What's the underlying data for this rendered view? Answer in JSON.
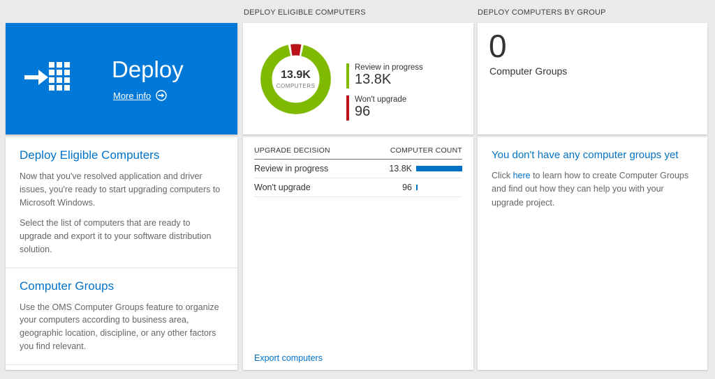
{
  "colors": {
    "accent": "#0078d7",
    "heading_blue": "#0072c6",
    "bar_blue": "#0072c6",
    "green": "#7fba00",
    "red": "#ba141a"
  },
  "left": {
    "tile": {
      "title": "Deploy",
      "more_info_label": "More info"
    },
    "sections": [
      {
        "heading": "Deploy Eligible Computers",
        "paragraphs": [
          "Now that you've resolved application and driver issues, you're ready to start upgrading computers to Microsoft Windows.",
          "Select the list of computers that are ready to upgrade and export it to your software distribution solution."
        ]
      },
      {
        "heading": "Computer Groups",
        "paragraphs": [
          "Use the OMS Computer Groups feature to organize your computers according to business area, geographic location, discipline, or any other factors you find relevant."
        ]
      }
    ]
  },
  "middle": {
    "header": "DEPLOY ELIGIBLE COMPUTERS",
    "donut": {
      "center_value": "13.9K",
      "center_label": "COMPUTERS"
    },
    "legend": [
      {
        "label": "Review in progress",
        "value": "13.8K",
        "color": "#7fba00"
      },
      {
        "label": "Won't upgrade",
        "value": "96",
        "color": "#ba141a"
      }
    ],
    "table": {
      "col_decision": "UPGRADE DECISION",
      "col_count": "COMPUTER COUNT",
      "rows": [
        {
          "decision": "Review in progress",
          "count": "13.8K",
          "bar_pct": 100
        },
        {
          "decision": "Won't upgrade",
          "count": "96",
          "bar_pct": 3
        }
      ]
    },
    "footer_link": "Export computers"
  },
  "right": {
    "header": "DEPLOY COMPUTERS BY GROUP",
    "count": "0",
    "count_label": "Computer Groups",
    "empty": {
      "heading": "You don't have any computer groups yet",
      "text_before": "Click ",
      "link_text": "here",
      "text_after": " to learn how to create Computer Groups and find out how they can help you with your upgrade project."
    }
  },
  "chart_data": {
    "type": "pie",
    "title": "DEPLOY ELIGIBLE COMPUTERS",
    "center_total": "13.9K",
    "center_label": "COMPUTERS",
    "categories": [
      "Review in progress",
      "Won't upgrade"
    ],
    "values": [
      13800,
      96
    ],
    "value_labels": [
      "13.8K",
      "96"
    ],
    "colors": [
      "#7fba00",
      "#ba141a"
    ],
    "legend_position": "right"
  }
}
